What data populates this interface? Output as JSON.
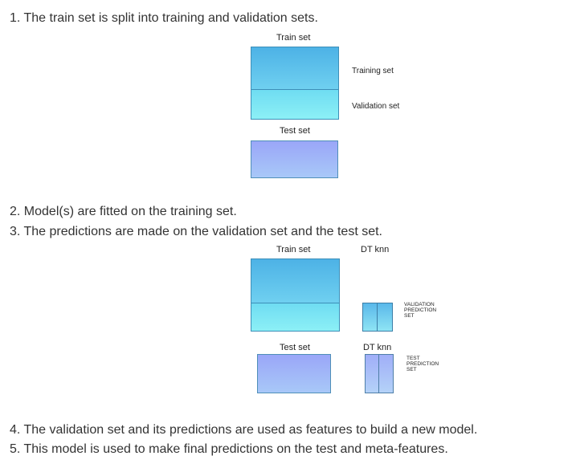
{
  "steps": {
    "s1": "1. The train set is split into training and validation sets.",
    "s2": "2. Model(s) are fitted on the training set.",
    "s3": "3. The predictions are made on the validation set and the test set.",
    "s4": "4. The validation set and its predictions are used as features to build a new model.",
    "s5": "5. This model is used to make final predictions on the test and meta-features."
  },
  "diagram1": {
    "train_label": "Train set",
    "training_label": "Training set",
    "validation_label": "Validation set",
    "test_label": "Test set"
  },
  "diagram2": {
    "train_label": "Train set",
    "models_label": "DT  knn",
    "validation_prediction_label": [
      "VALIDATION",
      "PREDICTION",
      "SET"
    ],
    "test_label": "Test set",
    "models_label_test": "DT  knn",
    "test_prediction_label": [
      "TEST",
      "PREDICTION",
      "SET"
    ]
  },
  "colors": {
    "train": "#4db2e6",
    "validation": "#8cf0f6",
    "test": "#9aa6f8"
  }
}
